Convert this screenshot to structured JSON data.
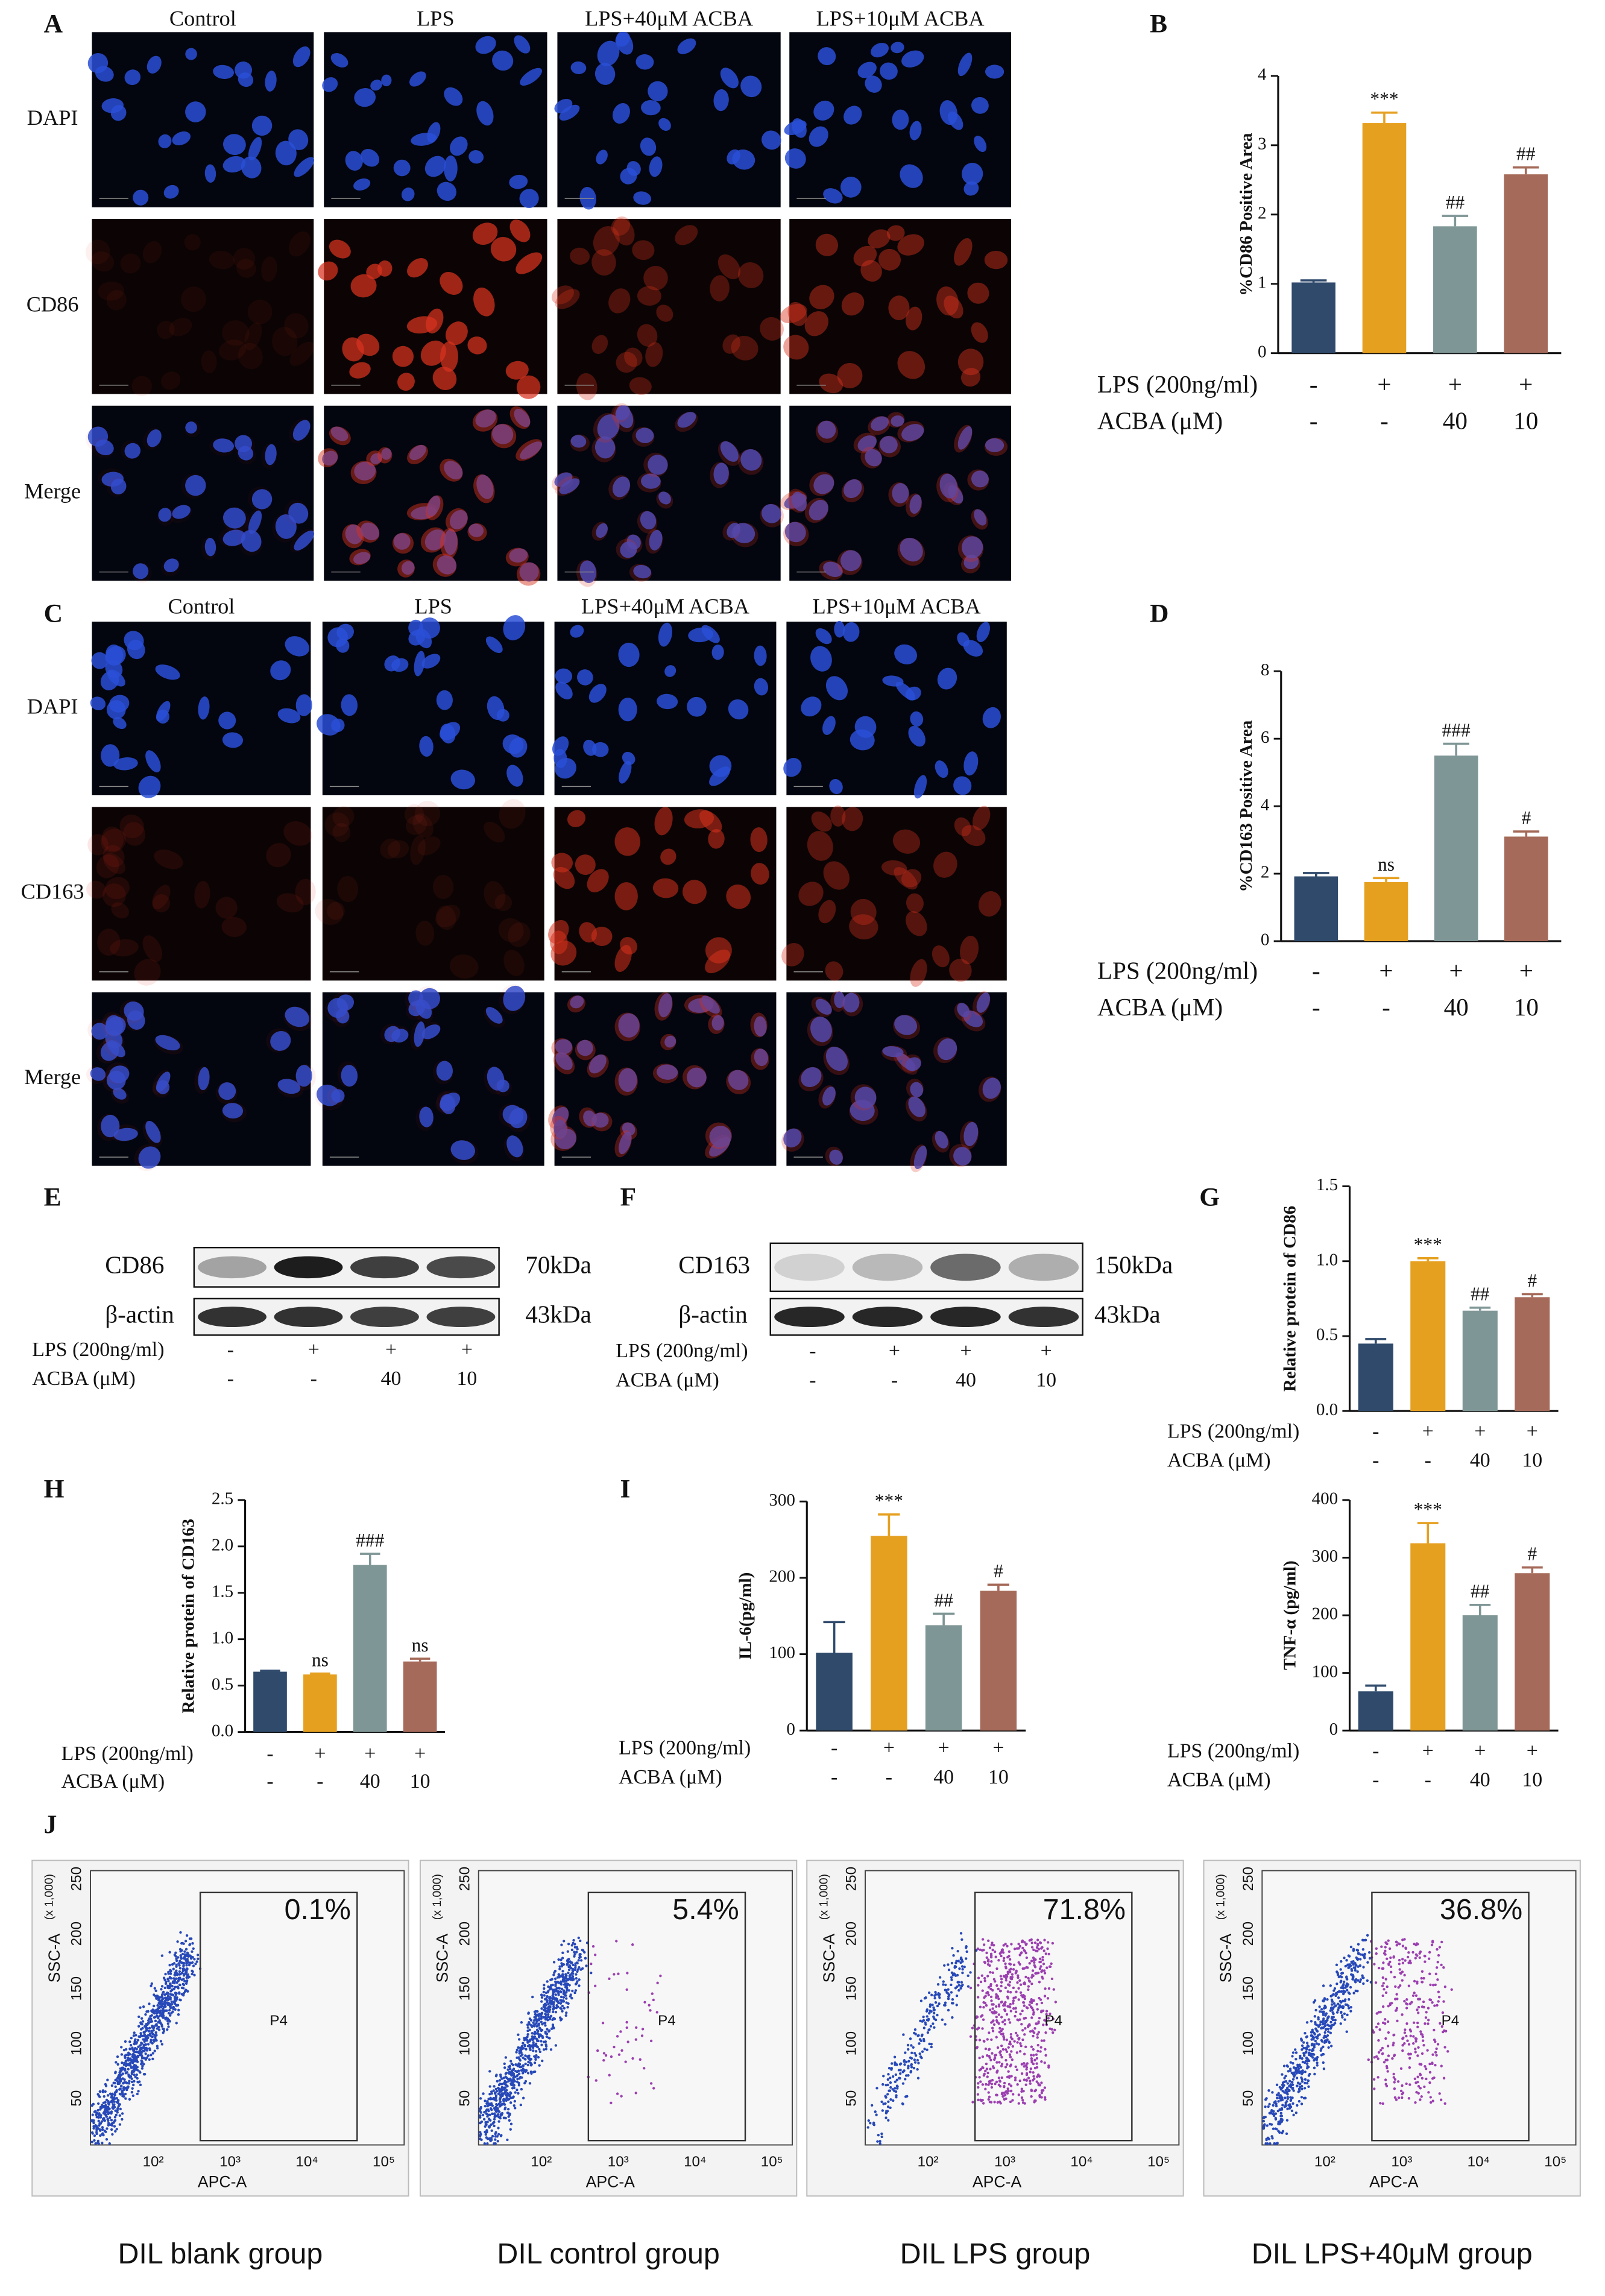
{
  "chart_data": [
    {
      "type": "bar",
      "panel": "B",
      "y_label": "%CD86 Positive Area",
      "ylim": [
        0,
        4
      ],
      "yticks": [
        0,
        1,
        2,
        3,
        4
      ],
      "values": [
        1.02,
        3.32,
        1.83,
        2.58
      ],
      "errors": [
        0.03,
        0.15,
        0.15,
        0.1
      ],
      "annotations": [
        null,
        "***",
        "##",
        "##"
      ],
      "colors": [
        "#2f4a6b",
        "#e6a020",
        "#7f9696",
        "#a56a59"
      ],
      "conditions": [
        {
          "label": "LPS (200ng/ml)",
          "values": [
            "-",
            "+",
            "+",
            "+"
          ]
        },
        {
          "label": "ACBA (μM)",
          "values": [
            "-",
            "-",
            "40",
            "10"
          ]
        }
      ]
    },
    {
      "type": "bar",
      "panel": "D",
      "y_label": "%CD163 Positive Area",
      "ylim": [
        0,
        8
      ],
      "yticks": [
        0,
        2,
        4,
        6,
        8
      ],
      "values": [
        1.92,
        1.75,
        5.5,
        3.1
      ],
      "errors": [
        0.1,
        0.12,
        0.35,
        0.15
      ],
      "annotations": [
        null,
        "ns",
        "###",
        "#"
      ],
      "colors": [
        "#2f4a6b",
        "#e6a020",
        "#7f9696",
        "#a56a59"
      ],
      "conditions": [
        {
          "label": "LPS (200ng/ml)",
          "values": [
            "-",
            "+",
            "+",
            "+"
          ]
        },
        {
          "label": "ACBA (μM)",
          "values": [
            "-",
            "-",
            "40",
            "10"
          ]
        }
      ]
    },
    {
      "type": "bar",
      "panel": "G",
      "y_label": "Relative protein of CD86",
      "ylim": [
        0,
        1.5
      ],
      "yticks": [
        {
          "value": 0,
          "label": "0.0"
        },
        {
          "value": 0.5,
          "label": "0.5"
        },
        {
          "value": 1,
          "label": "1.0"
        },
        {
          "value": 1.5,
          "label": "1.5"
        }
      ],
      "values": [
        0.45,
        1.0,
        0.67,
        0.76
      ],
      "errors": [
        0.03,
        0.02,
        0.02,
        0.02
      ],
      "annotations": [
        null,
        "***",
        "##",
        "#"
      ],
      "colors": [
        "#2f4a6b",
        "#e6a020",
        "#7f9696",
        "#a56a59"
      ],
      "conditions": [
        {
          "label": "LPS  (200ng/ml)",
          "values": [
            "-",
            "+",
            "+",
            "+"
          ]
        },
        {
          "label": "ACBA (μM)",
          "values": [
            "-",
            "-",
            "40",
            "10"
          ]
        }
      ]
    },
    {
      "type": "bar",
      "panel": "H",
      "y_label": "Relative protein of CD163",
      "ylim": [
        0,
        2.5
      ],
      "yticks": [
        {
          "value": 0,
          "label": "0.0"
        },
        {
          "value": 0.5,
          "label": "0.5"
        },
        {
          "value": 1,
          "label": "1.0"
        },
        {
          "value": 1.5,
          "label": "1.5"
        },
        {
          "value": 2,
          "label": "2.0"
        },
        {
          "value": 2.5,
          "label": "2.5"
        }
      ],
      "values": [
        0.65,
        0.62,
        1.8,
        0.76
      ],
      "errors": [
        0.01,
        0.01,
        0.12,
        0.03
      ],
      "annotations": [
        null,
        "ns",
        "###",
        "ns"
      ],
      "colors": [
        "#2f4a6b",
        "#e6a020",
        "#7f9696",
        "#a56a59"
      ],
      "conditions": [
        {
          "label": "LPS (200ng/ml)",
          "values": [
            "-",
            "+",
            "+",
            "+"
          ]
        },
        {
          "label": "ACBA (μM)",
          "values": [
            "-",
            "-",
            "40",
            "10"
          ]
        }
      ]
    },
    {
      "type": "bar",
      "panel": "I",
      "y_label": "IL-6(pg/ml)",
      "ylim": [
        0,
        300
      ],
      "yticks": [
        0,
        100,
        200,
        300
      ],
      "values": [
        102,
        255,
        138,
        183
      ],
      "errors": [
        40,
        28,
        15,
        8
      ],
      "annotations": [
        null,
        "***",
        "##",
        "#"
      ],
      "colors": [
        "#2f4a6b",
        "#e6a020",
        "#7f9696",
        "#a56a59"
      ],
      "conditions": [
        {
          "label": "LPS (200ng/ml)",
          "values": [
            "-",
            "+",
            "+",
            "+"
          ]
        },
        {
          "label": "ACBA (μM)",
          "values": [
            "-",
            "-",
            "40",
            "10"
          ]
        }
      ]
    },
    {
      "type": "bar",
      "y_label": "TNF-α (pg/ml)",
      "ylim": [
        0,
        400
      ],
      "yticks": [
        0,
        100,
        200,
        300,
        400
      ],
      "values": [
        68,
        325,
        200,
        273
      ],
      "errors": [
        10,
        35,
        18,
        10
      ],
      "annotations": [
        null,
        "***",
        "##",
        "#"
      ],
      "colors": [
        "#2f4a6b",
        "#e6a020",
        "#7f9696",
        "#a56a59"
      ],
      "conditions": [
        {
          "label": "LPS (200ng/ml)",
          "values": [
            "-",
            "+",
            "+",
            "+"
          ]
        },
        {
          "label": "ACBA (μM)",
          "values": [
            "-",
            "-",
            "40",
            "10"
          ]
        }
      ]
    }
  ],
  "micrographs": [
    {
      "panel": "A",
      "columns": [
        "Control",
        "LPS",
        "LPS+40μM ACBA",
        "LPS+10μM ACBA"
      ],
      "rows": [
        "DAPI",
        "CD86",
        "Merge"
      ]
    },
    {
      "panel": "C",
      "columns": [
        "Control",
        "LPS",
        "LPS+40μM ACBA",
        "LPS+10μM ACBA"
      ],
      "rows": [
        "DAPI",
        "CD163",
        "Merge"
      ]
    }
  ],
  "blots": [
    {
      "panel": "E",
      "bands": [
        {
          "label": "CD86",
          "size": "70kDa"
        },
        {
          "label": "β-actin",
          "size": "43kDa"
        }
      ],
      "conditions": [
        {
          "label": "LPS (200ng/ml)",
          "values": [
            "-",
            "+",
            "+",
            "+"
          ]
        },
        {
          "label": "ACBA (μM)",
          "values": [
            "-",
            "-",
            "40",
            "10"
          ]
        }
      ]
    },
    {
      "panel": "F",
      "bands": [
        {
          "label": "CD163",
          "size": "150kDa"
        },
        {
          "label": "β-actin",
          "size": "43kDa"
        }
      ],
      "conditions": [
        {
          "label": "LPS (200ng/ml)",
          "values": [
            "-",
            "+",
            "+",
            "+"
          ]
        },
        {
          "label": "ACBA (μM)",
          "values": [
            "-",
            "-",
            "40",
            "10"
          ]
        }
      ]
    }
  ],
  "flow": {
    "panel": "J",
    "y_axis": "SSC-A",
    "x_axis": "APC-A",
    "y_scale": "(x 1,000)",
    "gate": "P4",
    "yticks": [
      "50",
      "100",
      "150",
      "200",
      "250"
    ],
    "xticks": [
      "10²",
      "10³",
      "10⁴",
      "10⁵"
    ],
    "plots": [
      {
        "percent": "0.1%",
        "caption": "DIL blank group"
      },
      {
        "percent": "5.4%",
        "caption": "DIL control group"
      },
      {
        "percent": "71.8%",
        "caption": "DIL LPS group"
      },
      {
        "percent": "36.8%",
        "caption": "DIL LPS+40μM group"
      }
    ]
  }
}
